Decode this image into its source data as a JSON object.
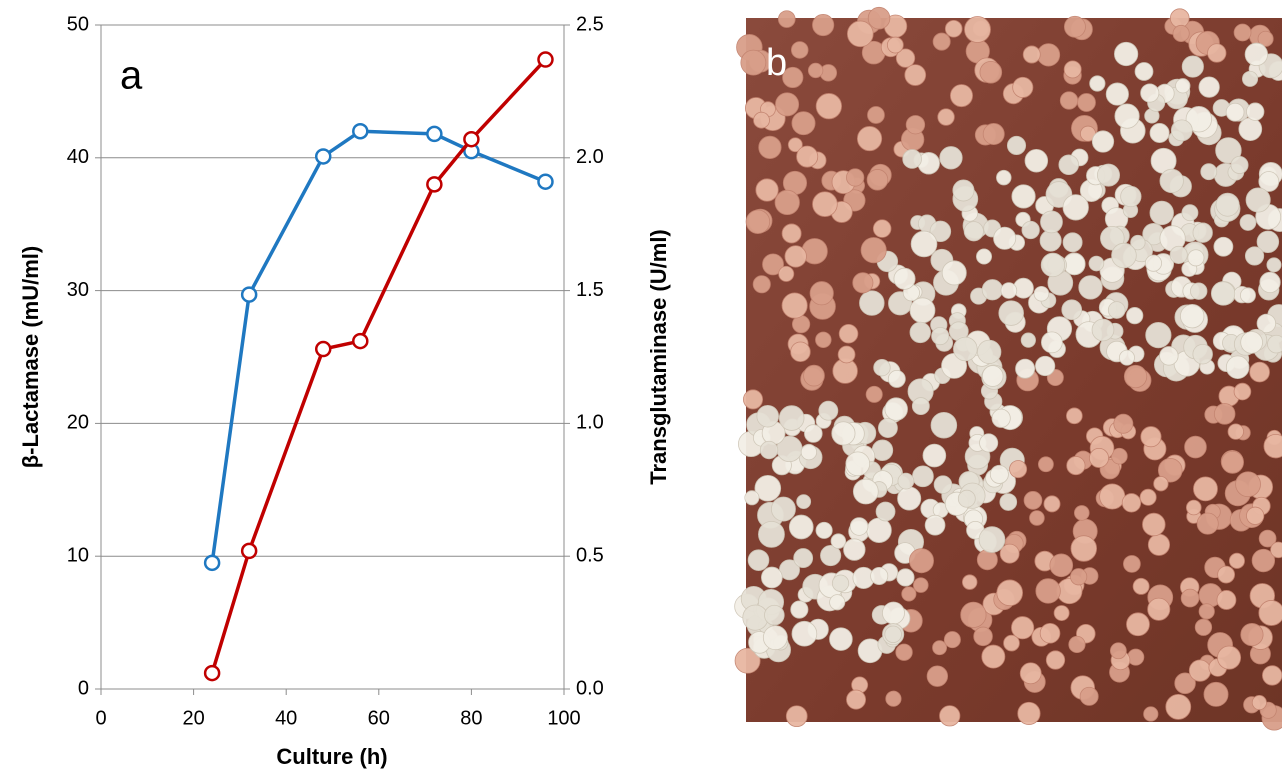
{
  "chart_data": {
    "type": "line",
    "x": [
      24,
      32,
      48,
      56,
      72,
      80,
      96
    ],
    "series": [
      {
        "color": "#1f78c1",
        "values": [
          9.5,
          29.7,
          40.1,
          42.0,
          41.8,
          40.5,
          38.2
        ]
      },
      {
        "color": "#c00000",
        "values": [
          0.06,
          0.52,
          1.28,
          1.31,
          1.9,
          2.07,
          2.37
        ],
        "axis": "y2"
      }
    ],
    "xlabel": "Culture (h)",
    "ylabel": "β-Lactamase (mU/ml)",
    "y2label": "Transglutaminase (U/ml)",
    "xlim": [
      0,
      100
    ],
    "xticks": [
      0,
      20,
      40,
      60,
      80,
      100
    ],
    "ylim": [
      0,
      50
    ],
    "yticks": [
      0,
      10,
      20,
      30,
      40,
      50
    ],
    "y2lim": [
      0,
      2.5
    ],
    "y2ticks": [
      {
        "value": 0,
        "label": "0.0"
      },
      0.5,
      {
        "value": 1,
        "label": "1.0"
      },
      1.5,
      {
        "value": 2,
        "label": "2.0"
      },
      2.5
    ],
    "grid": true,
    "annotations": [
      "a",
      "b"
    ]
  }
}
